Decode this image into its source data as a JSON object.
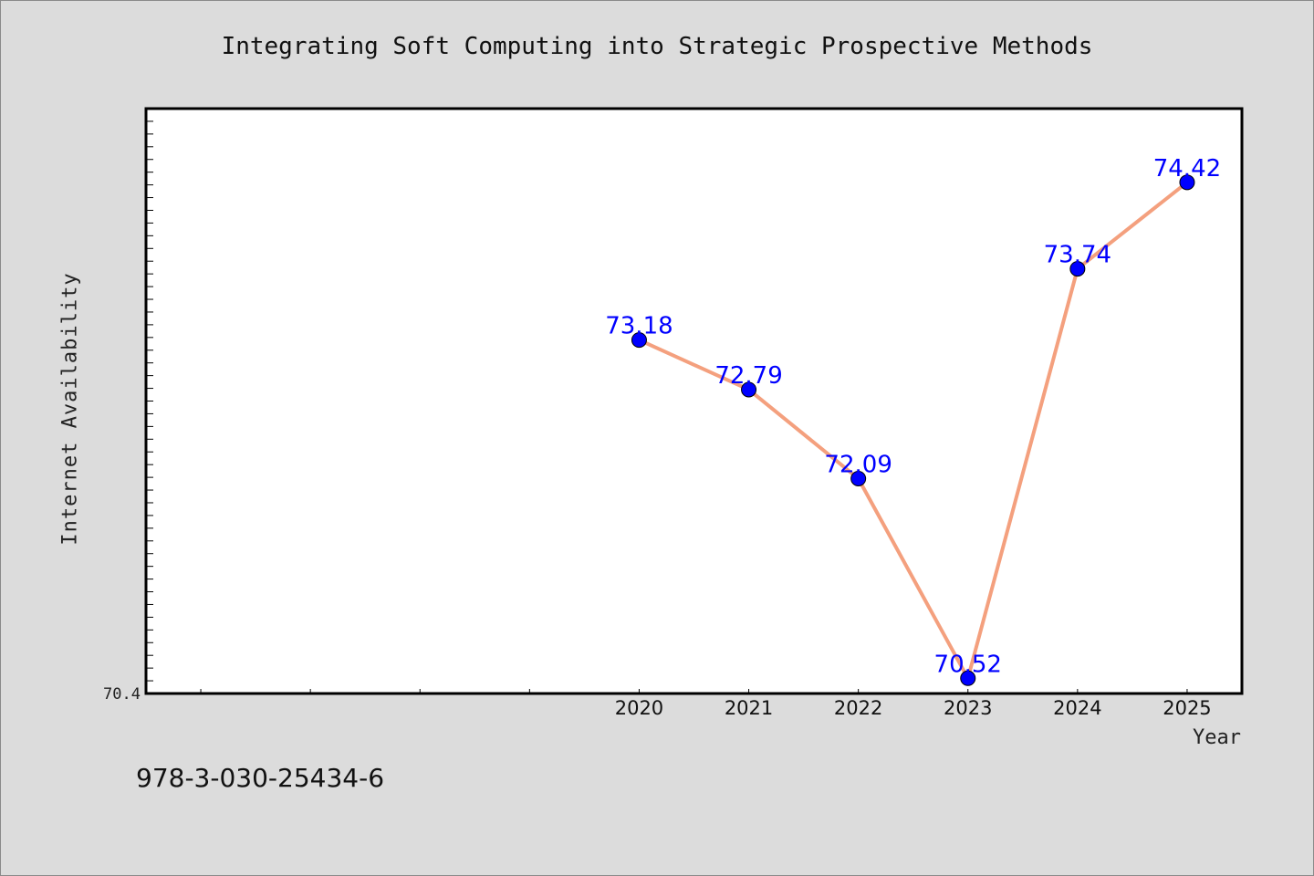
{
  "chart_data": {
    "type": "line",
    "title": "Integrating Soft Computing into Strategic Prospective Methods",
    "xlabel": "Year",
    "ylabel": "Internet Availability",
    "x": [
      2020,
      2021,
      2022,
      2023,
      2024,
      2025
    ],
    "series": [
      {
        "values": [
          73.18,
          72.79,
          72.09,
          70.52,
          73.74,
          74.42
        ],
        "labels": [
          "73.18",
          "72.79",
          "72.09",
          "70.52",
          "73.74",
          "74.42"
        ]
      }
    ],
    "xlim": [
      2015.5,
      2025.5
    ],
    "ylim": [
      70.4,
      75.0
    ],
    "x_tick_labels": [
      "2020",
      "2021",
      "2022",
      "2023",
      "2024",
      "2025"
    ],
    "y_tick_labels": [
      "70.4"
    ],
    "line_color": "#f4a07e",
    "marker_color": "#0000ff",
    "label_color": "#0000ff",
    "grid": false,
    "legend": "none"
  },
  "footer": {
    "isbn": "978-3-030-25434-6"
  }
}
